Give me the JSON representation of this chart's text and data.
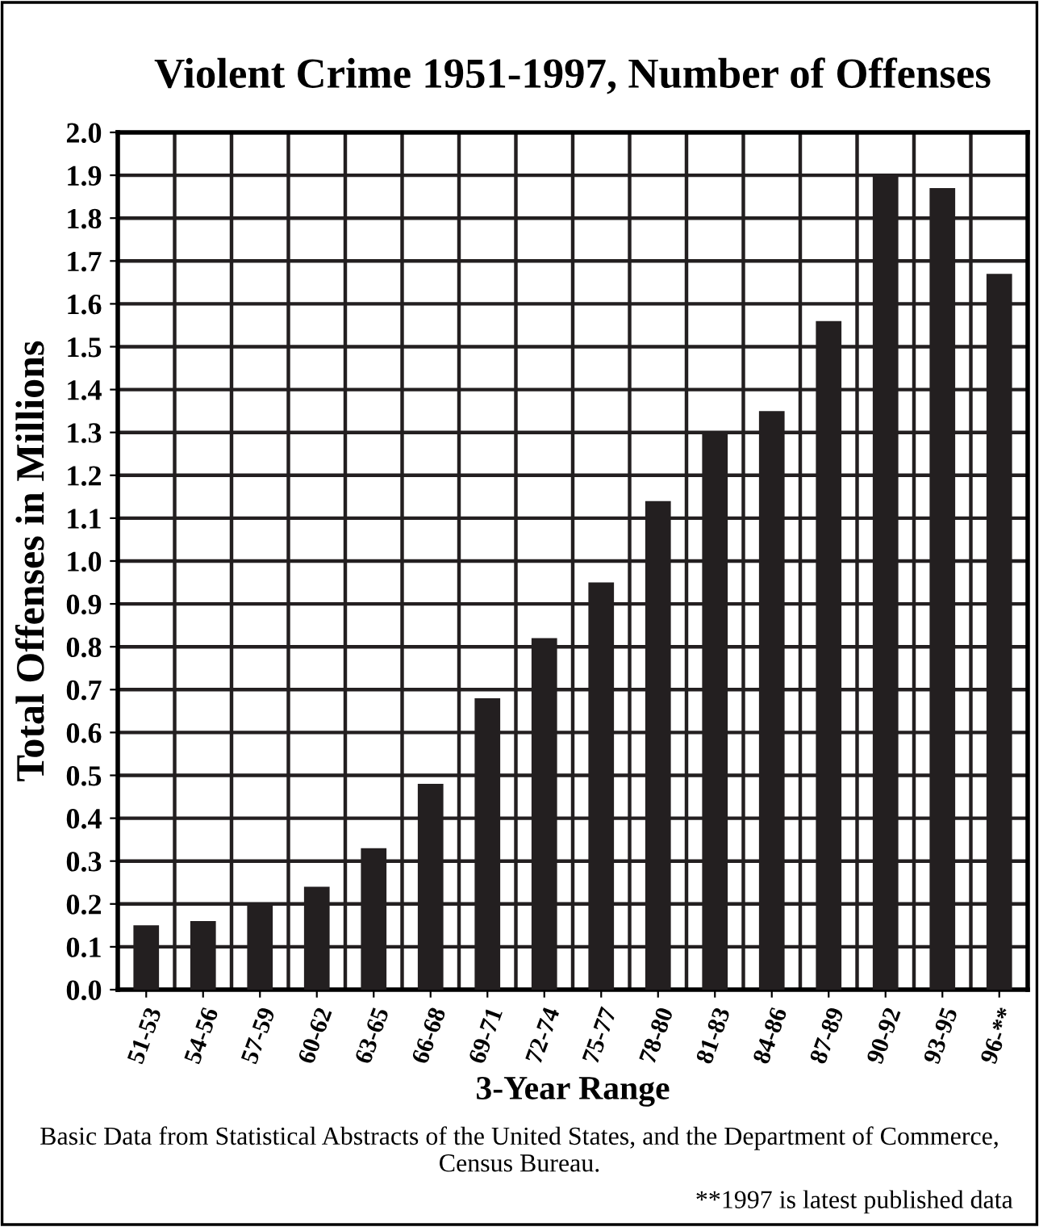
{
  "chart_data": {
    "type": "bar",
    "title": "Violent Crime 1951-1997, Number of Offenses",
    "xlabel": "3-Year Range",
    "ylabel": "Total Offenses in Millions",
    "categories": [
      "51-53",
      "54-56",
      "57-59",
      "60-62",
      "63-65",
      "66-68",
      "69-71",
      "72-74",
      "75-77",
      "78-80",
      "81-83",
      "84-86",
      "87-89",
      "90-92",
      "93-95",
      "96-**"
    ],
    "values": [
      0.15,
      0.16,
      0.2,
      0.24,
      0.33,
      0.48,
      0.68,
      0.82,
      0.95,
      1.14,
      1.3,
      1.35,
      1.56,
      1.9,
      1.87,
      1.67
    ],
    "color": "#231f20",
    "ylim": [
      0,
      2.0
    ],
    "yticks": [
      {
        "value": 0,
        "label": "0.0"
      },
      {
        "value": 0.1,
        "label": "0.1"
      },
      {
        "value": 0.2,
        "label": "0.2"
      },
      {
        "value": 0.3,
        "label": "0.3"
      },
      {
        "value": 0.4,
        "label": "0.4"
      },
      {
        "value": 0.5,
        "label": "0.5"
      },
      {
        "value": 0.6,
        "label": "0.6"
      },
      {
        "value": 0.7,
        "label": "0.7"
      },
      {
        "value": 0.8,
        "label": "0.8"
      },
      {
        "value": 0.9,
        "label": "0.9"
      },
      {
        "value": 1.0,
        "label": "1.0"
      },
      {
        "value": 1.1,
        "label": "1.1"
      },
      {
        "value": 1.2,
        "label": "1.2"
      },
      {
        "value": 1.3,
        "label": "1.3"
      },
      {
        "value": 1.4,
        "label": "1.4"
      },
      {
        "value": 1.5,
        "label": "1.5"
      },
      {
        "value": 1.6,
        "label": "1.6"
      },
      {
        "value": 1.7,
        "label": "1.7"
      },
      {
        "value": 1.8,
        "label": "1.8"
      },
      {
        "value": 1.9,
        "label": "1.9"
      },
      {
        "value": 2.0,
        "label": "2.0"
      }
    ],
    "grid": true,
    "annotations": [
      "Basic Data from Statistical Abstracts of the United States, and the Department of Commerce, Census Bureau.",
      "**1997 is latest published data"
    ]
  }
}
